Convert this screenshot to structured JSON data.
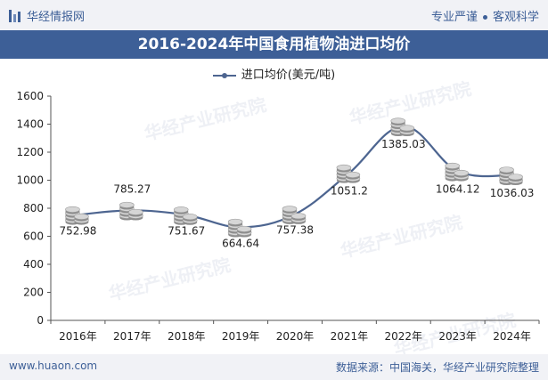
{
  "header": {
    "brand": "华经情报网",
    "motto_left": "专业严谨",
    "motto_right": "客观科学"
  },
  "title": "2016-2024年中国食用植物油进口均价",
  "legend_label": "进口均价(美元/吨)",
  "watermark_text": "华经产业研究院",
  "footer": {
    "url": "www.huaon.com",
    "source": "数据来源：中国海关，华经产业研究院整理"
  },
  "colors": {
    "brand_blue": "#3d5f97",
    "line": "#4d6590",
    "coin": "#b8b8b8"
  },
  "chart_data": {
    "type": "line",
    "categories": [
      "2016年",
      "2017年",
      "2018年",
      "2019年",
      "2020年",
      "2021年",
      "2022年",
      "2023年",
      "2024年"
    ],
    "series": [
      {
        "name": "进口均价(美元/吨)",
        "values": [
          752.98,
          785.27,
          751.67,
          664.64,
          757.38,
          1051.2,
          1385.03,
          1064.12,
          1036.03
        ]
      }
    ],
    "data_labels": [
      "752.98",
      "785.27",
      "751.67",
      "664.64",
      "757.38",
      "1051.2",
      "1385.03",
      "1064.12",
      "1036.03"
    ],
    "y_ticks": [
      0,
      200,
      400,
      600,
      800,
      1000,
      1200,
      1400,
      1600
    ],
    "ylim": [
      0,
      1600
    ],
    "grid": false,
    "legend_position": "top-center",
    "marker": "coin-stack"
  }
}
